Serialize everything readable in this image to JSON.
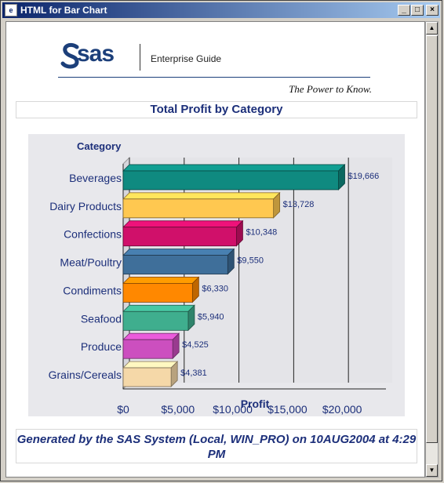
{
  "window": {
    "title": "HTML for Bar Chart",
    "minimize_label": "_",
    "maximize_label": "□",
    "close_label": "×"
  },
  "banner": {
    "logo_text": "sas",
    "product": "Enterprise Guide",
    "tagline": "The Power to Know."
  },
  "report": {
    "title": "Total Profit by Category",
    "footer": "Generated by the SAS System (Local, WIN_PRO) on 10AUG2004 at 4:29 PM"
  },
  "chart_data": {
    "type": "bar",
    "orientation": "horizontal",
    "title": "",
    "ylabel": "Category",
    "xlabel": "Profit",
    "categories": [
      "Beverages",
      "Dairy Products",
      "Confections",
      "Meat/Poultry",
      "Condiments",
      "Seafood",
      "Produce",
      "Grains/Cereals"
    ],
    "values": [
      19666,
      13728,
      10348,
      9550,
      6330,
      5940,
      4525,
      4381
    ],
    "value_labels": [
      "$19,666",
      "$13,728",
      "$10,348",
      "$9,550",
      "$6,330",
      "$5,940",
      "$4,525",
      "$4,381"
    ],
    "colors": [
      "#0f8a80",
      "#ffc850",
      "#d0106a",
      "#3f6f9a",
      "#ff8800",
      "#3fae8e",
      "#cc4fbf",
      "#f5d8a8"
    ],
    "xlim": [
      0,
      24000
    ],
    "xticks": [
      0,
      5000,
      10000,
      15000,
      20000
    ],
    "xtick_labels": [
      "$0",
      "$5,000",
      "$10,000",
      "$15,000",
      "$20,000"
    ],
    "grid": true,
    "style": "3d"
  }
}
